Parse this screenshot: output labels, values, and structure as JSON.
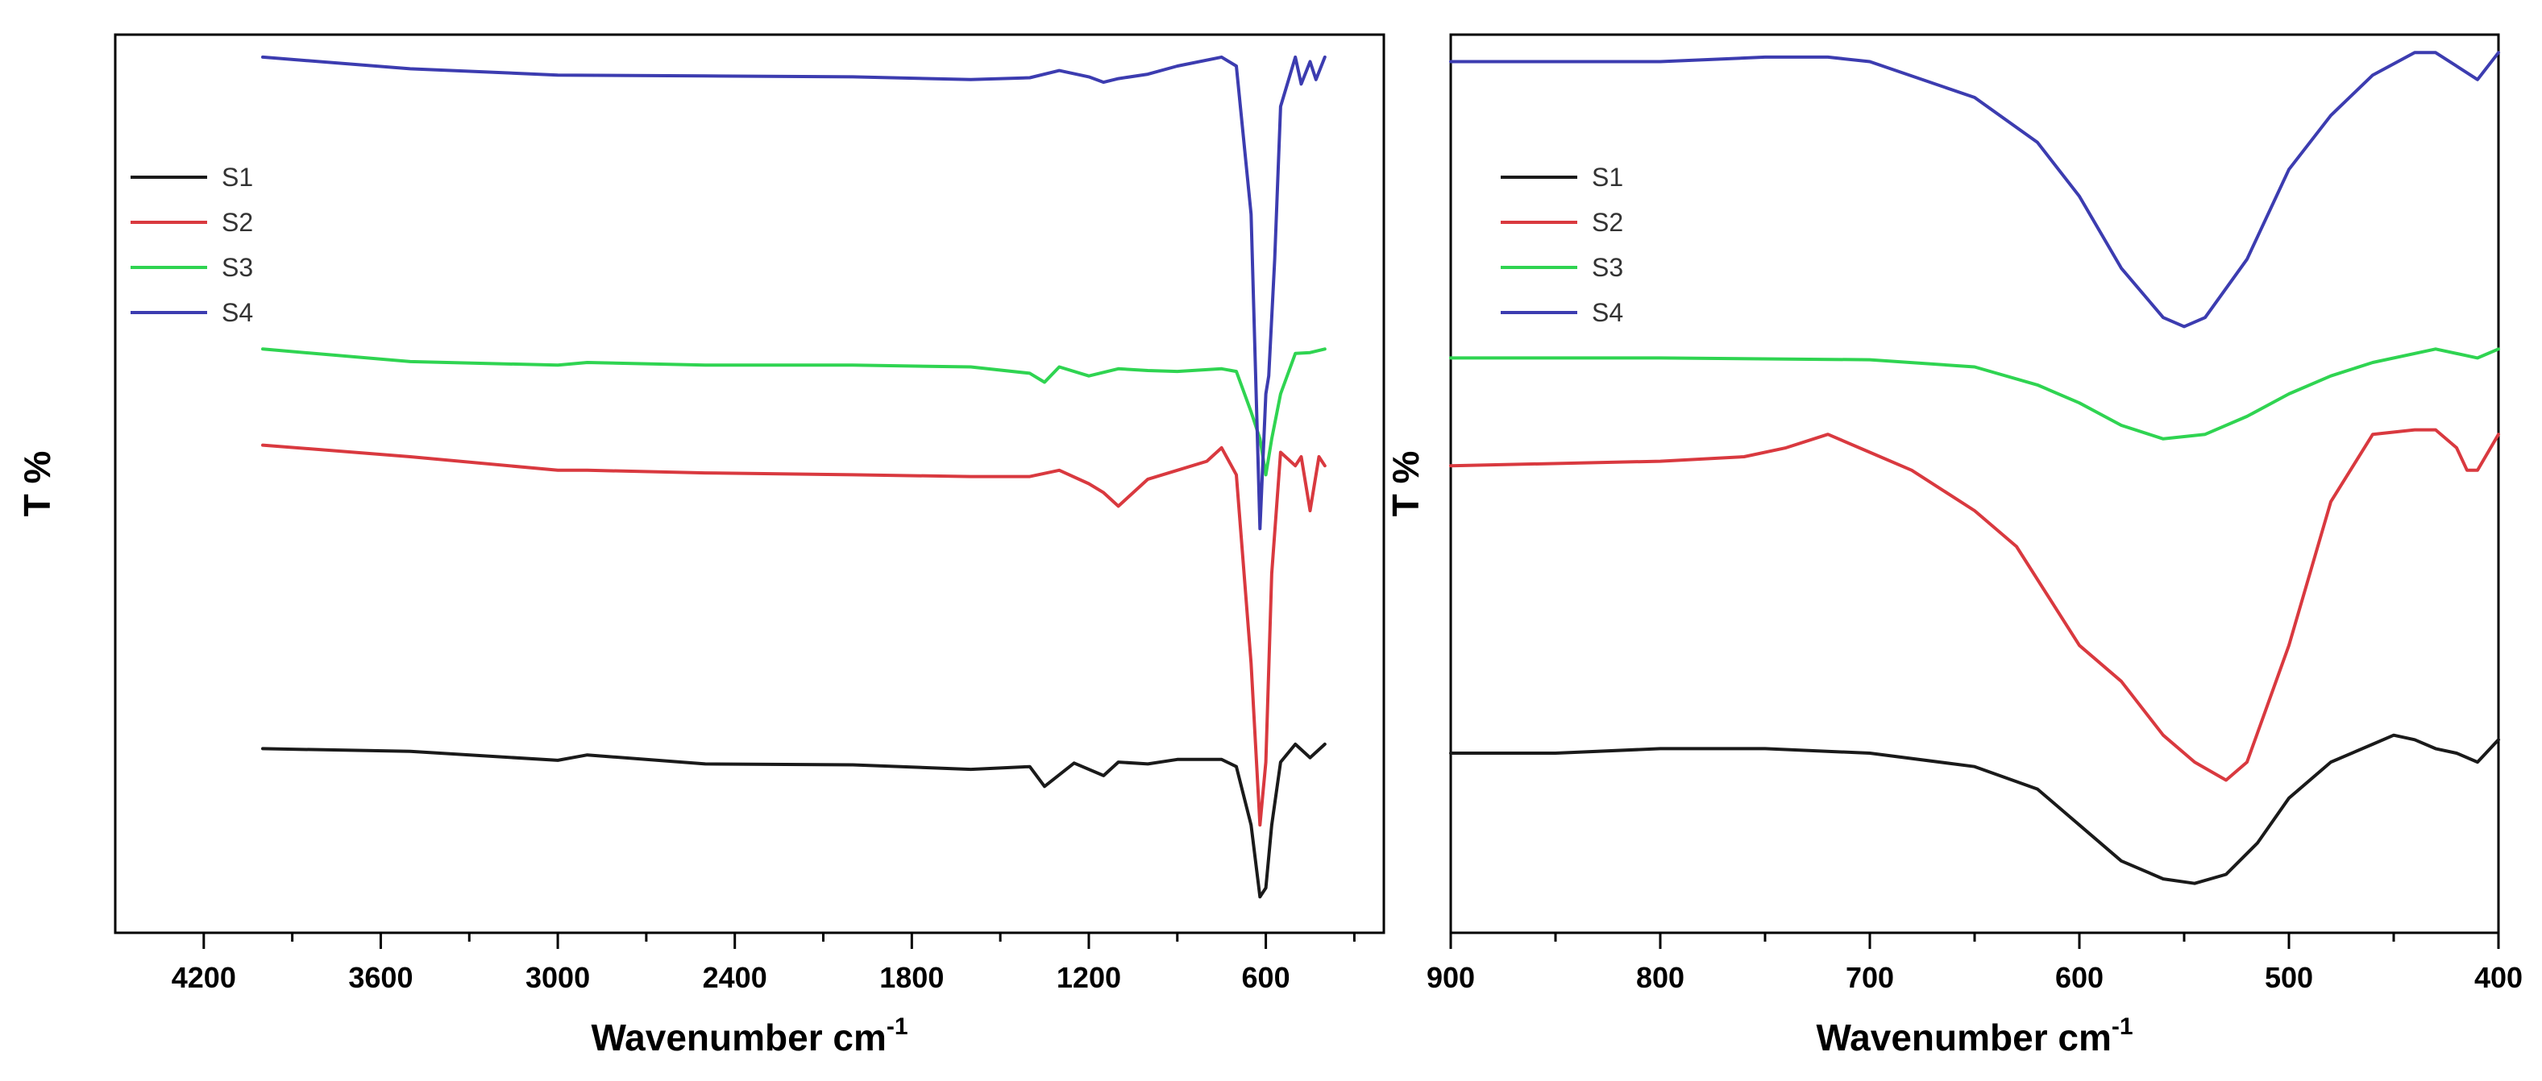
{
  "chart_data": [
    {
      "type": "line",
      "xlabel": "Wavenumber cm",
      "xlabel_sup": "-1",
      "ylabel": "T %",
      "xlim": [
        4500,
        200
      ],
      "xticks": [
        4200,
        3600,
        3000,
        2400,
        1800,
        1200,
        600
      ],
      "ylim": [
        0,
        100
      ],
      "legend": "top-left",
      "series": [
        {
          "name": "S1",
          "color": "#1a1a1a",
          "x": [
            4000,
            3500,
            3000,
            2900,
            2500,
            2000,
            1600,
            1400,
            1350,
            1250,
            1150,
            1100,
            1000,
            900,
            750,
            700,
            650,
            620,
            600,
            580,
            550,
            500,
            450,
            400
          ],
          "y": [
            20.5,
            20.2,
            19.2,
            19.8,
            18.8,
            18.7,
            18.2,
            18.5,
            16.3,
            18.9,
            17.5,
            19.0,
            18.8,
            19.3,
            19.3,
            18.5,
            12.0,
            4.0,
            5.0,
            12.0,
            19.0,
            21.0,
            19.5,
            21.0
          ]
        },
        {
          "name": "S2",
          "color": "#d9393f",
          "x": [
            4000,
            3500,
            3000,
            2900,
            2500,
            2000,
            1600,
            1400,
            1300,
            1200,
            1150,
            1100,
            1050,
            1000,
            900,
            800,
            750,
            700,
            650,
            620,
            600,
            580,
            550,
            500,
            480,
            450,
            420,
            400
          ],
          "y": [
            54.3,
            53.0,
            51.5,
            51.5,
            51.2,
            51.0,
            50.8,
            50.8,
            51.5,
            50.0,
            49.0,
            47.5,
            49.0,
            50.5,
            51.5,
            52.5,
            54.0,
            51.0,
            30.0,
            12.0,
            19.0,
            40.0,
            53.5,
            52.0,
            53.0,
            47.0,
            53.0,
            52.0
          ]
        },
        {
          "name": "S3",
          "color": "#2fd451",
          "x": [
            4000,
            3500,
            3000,
            2900,
            2500,
            2000,
            1600,
            1400,
            1350,
            1300,
            1200,
            1100,
            1000,
            900,
            750,
            700,
            650,
            620,
            600,
            580,
            550,
            500,
            450,
            400
          ],
          "y": [
            65.0,
            63.6,
            63.2,
            63.5,
            63.2,
            63.2,
            63.0,
            62.3,
            61.3,
            63.0,
            62.0,
            62.8,
            62.6,
            62.5,
            62.8,
            62.5,
            58.0,
            55.0,
            51.0,
            55.0,
            60.0,
            64.5,
            64.6,
            65.0
          ]
        },
        {
          "name": "S4",
          "color": "#3c3cb0",
          "x": [
            4000,
            3500,
            3000,
            2500,
            2000,
            1600,
            1400,
            1300,
            1200,
            1150,
            1100,
            1000,
            900,
            750,
            700,
            650,
            620,
            600,
            590,
            570,
            550,
            500,
            480,
            450,
            430,
            400
          ],
          "y": [
            97.5,
            96.2,
            95.5,
            95.4,
            95.3,
            95.0,
            95.2,
            96.0,
            95.3,
            94.7,
            95.1,
            95.6,
            96.5,
            97.5,
            96.5,
            80.0,
            45.0,
            60.0,
            62.0,
            75.0,
            92.0,
            97.5,
            94.5,
            97.0,
            95.0,
            97.5
          ]
        }
      ]
    },
    {
      "type": "line",
      "xlabel": "Wavenumber cm",
      "xlabel_sup": "-1",
      "ylabel": "T %",
      "xlim": [
        900,
        400
      ],
      "xticks": [
        900,
        800,
        700,
        600,
        500,
        400
      ],
      "ylim": [
        0,
        100
      ],
      "legend": "top-left",
      "series": [
        {
          "name": "S1",
          "color": "#1a1a1a",
          "x": [
            900,
            850,
            800,
            750,
            700,
            650,
            620,
            600,
            580,
            560,
            545,
            530,
            515,
            500,
            480,
            460,
            450,
            440,
            430,
            420,
            410,
            400
          ],
          "y": [
            20.0,
            20.0,
            20.5,
            20.5,
            20.0,
            18.5,
            16.0,
            12.0,
            8.0,
            6.0,
            5.5,
            6.5,
            10.0,
            15.0,
            19.0,
            21.0,
            22.0,
            21.5,
            20.5,
            20.0,
            19.0,
            21.5
          ]
        },
        {
          "name": "S2",
          "color": "#d9393f",
          "x": [
            900,
            800,
            760,
            740,
            720,
            700,
            680,
            650,
            630,
            600,
            580,
            560,
            545,
            530,
            520,
            500,
            480,
            460,
            440,
            430,
            420,
            415,
            410,
            400
          ],
          "y": [
            52.0,
            52.5,
            53.0,
            54.0,
            55.5,
            53.5,
            51.5,
            47.0,
            43.0,
            32.0,
            28.0,
            22.0,
            19.0,
            17.0,
            19.0,
            32.0,
            48.0,
            55.5,
            56.0,
            56.0,
            54.0,
            51.5,
            51.5,
            55.5
          ]
        },
        {
          "name": "S3",
          "color": "#2fd451",
          "x": [
            900,
            800,
            700,
            650,
            620,
            600,
            580,
            560,
            540,
            520,
            500,
            480,
            460,
            430,
            410,
            400
          ],
          "y": [
            64.0,
            64.0,
            63.8,
            63.0,
            61.0,
            59.0,
            56.5,
            55.0,
            55.5,
            57.5,
            60.0,
            62.0,
            63.5,
            65.0,
            64.0,
            65.0
          ]
        },
        {
          "name": "S4",
          "color": "#3c3cb0",
          "x": [
            900,
            850,
            800,
            750,
            720,
            700,
            650,
            620,
            600,
            580,
            560,
            550,
            540,
            520,
            500,
            480,
            460,
            440,
            430,
            420,
            410,
            400
          ],
          "y": [
            97.0,
            97.0,
            97.0,
            97.5,
            97.5,
            97.0,
            93.0,
            88.0,
            82.0,
            74.0,
            68.5,
            67.5,
            68.5,
            75.0,
            85.0,
            91.0,
            95.5,
            98.0,
            98.0,
            96.5,
            95.0,
            98.0
          ]
        }
      ]
    }
  ]
}
